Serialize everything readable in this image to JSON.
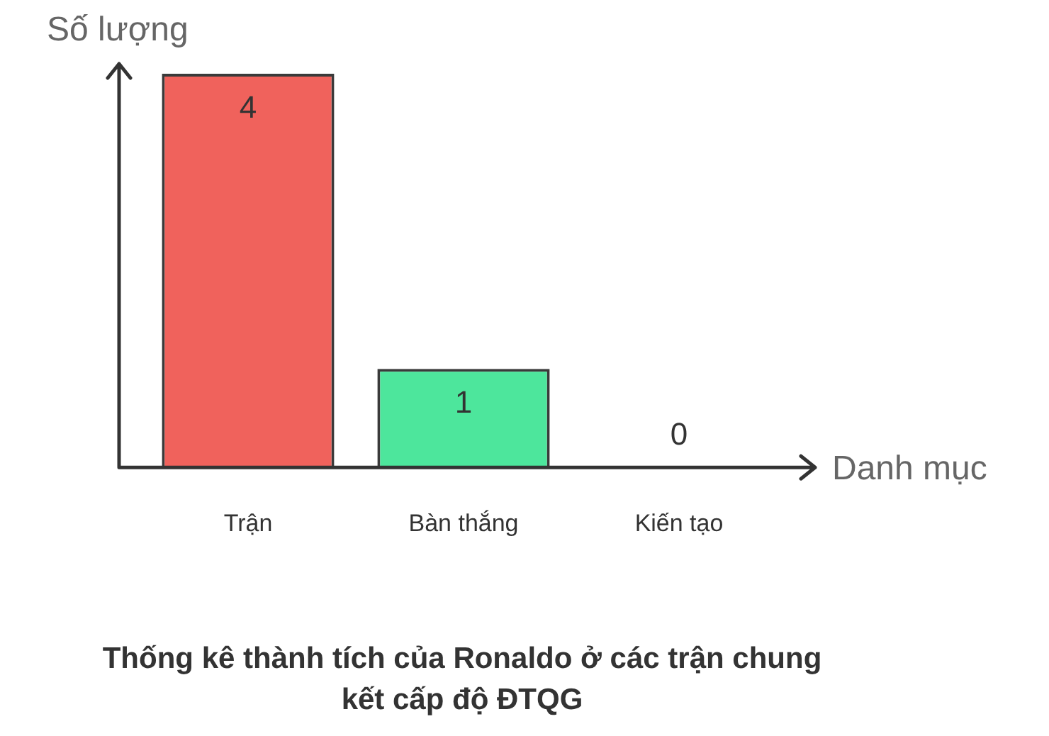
{
  "chart_data": {
    "type": "bar",
    "title": "Thống kê thành tích của Ronaldo ở các trận chung kết cấp độ ĐTQG",
    "xlabel": "Danh mục",
    "ylabel": "Số lượng",
    "categories": [
      "Trận",
      "Bàn thắng",
      "Kiến tạo"
    ],
    "values": [
      4,
      1,
      0
    ],
    "colors": [
      "#f0625c",
      "#4de69c",
      "#9b9b9b"
    ],
    "ylim": [
      0,
      4.1
    ],
    "data_labels": true,
    "grid": false,
    "legend": false,
    "tick_labels": "x"
  }
}
